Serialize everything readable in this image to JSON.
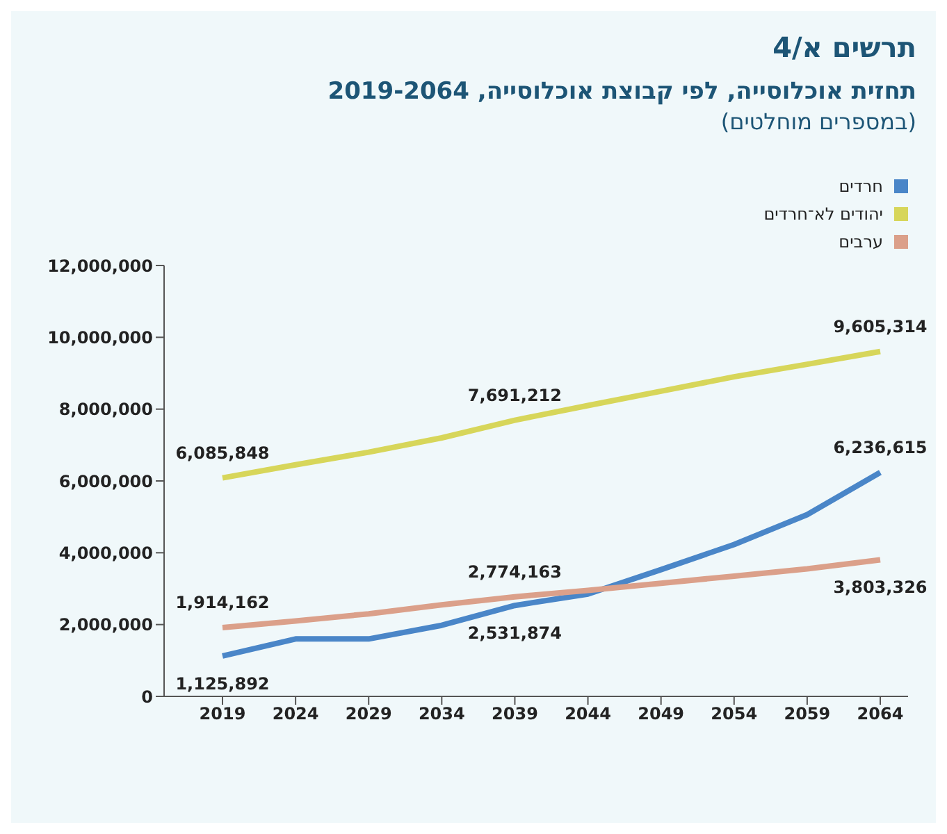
{
  "chart_data": {
    "type": "line",
    "title": "תרשים א/4",
    "subtitle": "תחזית אוכלוסייה, לפי קבוצת אוכלוסייה, 2019-2064",
    "annotations": [
      "(במספרים מוחלטים)"
    ],
    "categories": [
      "2019",
      "2024",
      "2029",
      "2034",
      "2039",
      "2044",
      "2049",
      "2054",
      "2059",
      "2064"
    ],
    "series": [
      {
        "name": "חרדים",
        "color": "#4a86c8",
        "values": [
          1125892,
          1600000,
          1600000,
          1980000,
          2531874,
          2850000,
          3530000,
          4230000,
          5060000,
          6236615
        ],
        "value_labels": [
          "1,125,892",
          null,
          null,
          null,
          "2,531,874",
          null,
          null,
          null,
          null,
          "6,236,615"
        ]
      },
      {
        "name": "יהודים לא־חרדים",
        "color": "#d7d65a",
        "values": [
          6085848,
          6450000,
          6800000,
          7200000,
          7691212,
          8100000,
          8500000,
          8900000,
          9250000,
          9605314
        ],
        "value_labels": [
          "6,085,848",
          null,
          null,
          null,
          "7,691,212",
          null,
          null,
          null,
          null,
          "9,605,314"
        ]
      },
      {
        "name": "ערבים",
        "color": "#dba08a",
        "values": [
          1914162,
          2100000,
          2300000,
          2550000,
          2774163,
          2950000,
          3150000,
          3350000,
          3550000,
          3803326
        ],
        "value_labels": [
          "1,914,162",
          null,
          null,
          null,
          "2,774,163",
          null,
          null,
          null,
          null,
          "3,803,326"
        ]
      }
    ],
    "ylim": [
      0,
      12000000
    ],
    "yticks": [
      0,
      {
        "value": 2000000,
        "label": "2,000,000"
      },
      {
        "value": 4000000,
        "label": "4,000,000"
      },
      {
        "value": 6000000,
        "label": "6,000,000"
      },
      {
        "value": 8000000,
        "label": "8,000,000"
      },
      {
        "value": 10000000,
        "label": "10,000,000"
      },
      {
        "value": 12000000,
        "label": "12,000,000"
      }
    ],
    "grid": false,
    "legend": "top right",
    "marker": "none",
    "line_style": "solid"
  }
}
